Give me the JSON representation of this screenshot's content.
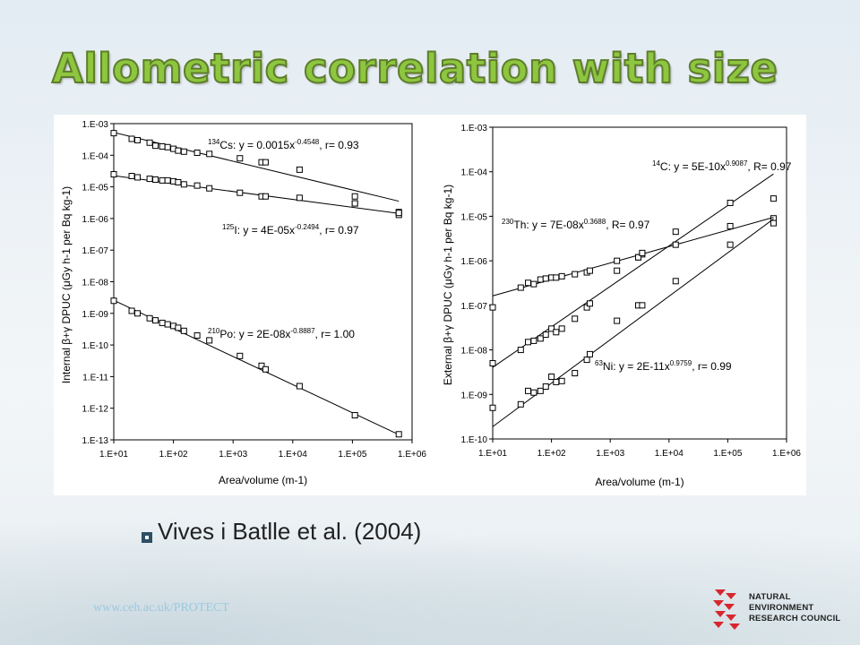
{
  "slide": {
    "title": "Allometric correlation with size",
    "citation": "Vives i Batlle et al. (2004)",
    "url": "www.ceh.ac.uk/PROTECT",
    "logo": [
      "NATURAL",
      "ENVIRONMENT",
      "RESEARCH COUNCIL"
    ],
    "colors": {
      "title": "#8dc63f",
      "title_outline": "#5f7d2b",
      "logo": "#d7262f",
      "url": "#9ac9df"
    }
  },
  "chart_data": [
    {
      "type": "scatter",
      "xscale": "log",
      "yscale": "log",
      "xlim": [
        10,
        1000000
      ],
      "ylim": [
        1e-13,
        0.001
      ],
      "xticks": [
        "1.E+01",
        "1.E+02",
        "1.E+03",
        "1.E+04",
        "1.E+05",
        "1.E+06"
      ],
      "yticks": [
        "1.E-13",
        "1.E-12",
        "1.E-11",
        "1.E-10",
        "1.E-09",
        "1.E-08",
        "1.E-07",
        "1.E-06",
        "1.E-05",
        "1.E-04",
        "1.E-03"
      ],
      "xlabel": "Area/volume (m-1)",
      "ylabel": "Internal β+γ DPUC (μGy h-1 per Bq kg-1)",
      "series": [
        {
          "name": "Cs-134",
          "label": {
            "iso": "134",
            "text": "Cs: y = 0.0015x",
            "exp": "-0.4548",
            "r": ", r",
            "r2": "= 0.93"
          },
          "fit": {
            "a": 0.0015,
            "b": -0.4548
          },
          "points": [
            [
              10,
              0.0005
            ],
            [
              20,
              0.00033
            ],
            [
              25,
              0.0003
            ],
            [
              40,
              0.00025
            ],
            [
              50,
              0.0002
            ],
            [
              65,
              0.00019
            ],
            [
              80,
              0.00018
            ],
            [
              100,
              0.00016
            ],
            [
              120,
              0.00014
            ],
            [
              150,
              0.00013
            ],
            [
              250,
              0.00012
            ],
            [
              400,
              0.00011
            ],
            [
              1300,
              8e-05
            ],
            [
              3000,
              6e-05
            ],
            [
              3500,
              6e-05
            ],
            [
              13000,
              3.5e-05
            ],
            [
              110000,
              5e-06
            ],
            [
              110000,
              3e-06
            ],
            [
              600000,
              1.6e-06
            ],
            [
              600000,
              1.3e-06
            ]
          ]
        },
        {
          "name": "I-125",
          "label": {
            "iso": "125",
            "text": "I: y = 4E-05x",
            "exp": "-0.2494",
            "r": ", r",
            "r2": "= 0.97"
          },
          "fit": {
            "a": 4e-05,
            "b": -0.2494
          },
          "points": [
            [
              10,
              2.5e-05
            ],
            [
              20,
              2.2e-05
            ],
            [
              25,
              2e-05
            ],
            [
              40,
              1.8e-05
            ],
            [
              50,
              1.7e-05
            ],
            [
              65,
              1.6e-05
            ],
            [
              80,
              1.6e-05
            ],
            [
              100,
              1.5e-05
            ],
            [
              120,
              1.4e-05
            ],
            [
              150,
              1.2e-05
            ],
            [
              250,
              1.1e-05
            ],
            [
              400,
              9e-06
            ],
            [
              1300,
              6.5e-06
            ],
            [
              3000,
              5e-06
            ],
            [
              3500,
              5e-06
            ],
            [
              13000,
              4.5e-06
            ],
            [
              110000,
              3e-06
            ],
            [
              600000,
              1.5e-06
            ]
          ]
        },
        {
          "name": "Po-210",
          "label": {
            "iso": "210",
            "text": "Po: y = 2E-08x",
            "exp": "-0.8887",
            "r": ", r",
            "r2": "= 1.00"
          },
          "fit": {
            "a": 2e-08,
            "b": -0.8887
          },
          "points": [
            [
              10,
              2.5e-09
            ],
            [
              20,
              1.2e-09
            ],
            [
              25,
              1e-09
            ],
            [
              40,
              7e-10
            ],
            [
              50,
              6e-10
            ],
            [
              65,
              5e-10
            ],
            [
              80,
              4.5e-10
            ],
            [
              100,
              4e-10
            ],
            [
              120,
              3.5e-10
            ],
            [
              150,
              2.8e-10
            ],
            [
              250,
              2e-10
            ],
            [
              400,
              1.4e-10
            ],
            [
              1300,
              4.5e-11
            ],
            [
              3000,
              2.2e-11
            ],
            [
              3500,
              1.7e-11
            ],
            [
              13000,
              5e-12
            ],
            [
              110000,
              6e-13
            ],
            [
              600000,
              1.5e-13
            ]
          ]
        }
      ]
    },
    {
      "type": "scatter",
      "xscale": "log",
      "yscale": "log",
      "xlim": [
        10,
        1000000
      ],
      "ylim": [
        1e-10,
        0.001
      ],
      "xticks": [
        "1.E+01",
        "1.E+02",
        "1.E+03",
        "1.E+04",
        "1.E+05",
        "1.E+06"
      ],
      "yticks": [
        "1.E-10",
        "1.E-09",
        "1.E-08",
        "1.E-07",
        "1.E-06",
        "1.E-05",
        "1.E-04",
        "1.E-03"
      ],
      "xlabel": "Area/volume (m-1)",
      "ylabel": "External β+γ DPUC (μGy h-1 per Bq kg-1)",
      "series": [
        {
          "name": "C-14",
          "label": {
            "iso": "14",
            "text": "C: y = 5E-10x",
            "exp": "0.9087",
            "r": ", R",
            "r2": "= 0.97"
          },
          "fit": {
            "a": 5e-10,
            "b": 0.9087
          },
          "points": [
            [
              10,
              5e-09
            ],
            [
              30,
              1e-08
            ],
            [
              40,
              1.5e-08
            ],
            [
              50,
              1.6e-08
            ],
            [
              65,
              1.8e-08
            ],
            [
              80,
              2.2e-08
            ],
            [
              100,
              3e-08
            ],
            [
              120,
              2.5e-08
            ],
            [
              150,
              3e-08
            ],
            [
              250,
              5e-08
            ],
            [
              400,
              9e-08
            ],
            [
              450,
              1.1e-07
            ],
            [
              1300,
              4.5e-08
            ],
            [
              3000,
              1e-07
            ],
            [
              3500,
              1e-07
            ],
            [
              13000,
              3.5e-07
            ],
            [
              110000,
              2.3e-06
            ],
            [
              600000,
              9e-06
            ]
          ]
        },
        {
          "name": "Th-230",
          "label": {
            "iso": "230",
            "text": "Th: y = 7E-08x",
            "exp": "0.3688",
            "r": ", R",
            "r2": "= 0.97"
          },
          "fit": {
            "a": 7e-08,
            "b": 0.3688
          },
          "points": [
            [
              10,
              9e-08
            ],
            [
              30,
              2.5e-07
            ],
            [
              40,
              3.2e-07
            ],
            [
              50,
              3e-07
            ],
            [
              65,
              3.8e-07
            ],
            [
              80,
              4e-07
            ],
            [
              100,
              4.2e-07
            ],
            [
              120,
              4.2e-07
            ],
            [
              150,
              4.5e-07
            ],
            [
              250,
              5e-07
            ],
            [
              400,
              5.5e-07
            ],
            [
              450,
              6e-07
            ],
            [
              1300,
              1e-06
            ],
            [
              3000,
              1.2e-06
            ],
            [
              3500,
              1.4e-06
            ],
            [
              13000,
              4.5e-06
            ],
            [
              110000,
              6e-06
            ],
            [
              600000,
              2.5e-05
            ]
          ]
        },
        {
          "name": "Ni-63",
          "label": {
            "iso": "63",
            "text": "Ni: y = 2E-11x",
            "exp": "0.9759",
            "r": ", r",
            "r2": "= 0.99"
          },
          "fit": {
            "a": 2e-11,
            "b": 0.9759
          },
          "points": [
            [
              10,
              5e-10
            ],
            [
              30,
              6e-10
            ],
            [
              40,
              1.2e-09
            ],
            [
              50,
              1.1e-09
            ],
            [
              65,
              1.2e-09
            ],
            [
              80,
              1.5e-09
            ],
            [
              100,
              2.5e-09
            ],
            [
              120,
              1.9e-09
            ],
            [
              150,
              2e-09
            ],
            [
              250,
              3e-09
            ],
            [
              400,
              6e-09
            ],
            [
              450,
              8e-09
            ],
            [
              1300,
              6e-07
            ],
            [
              3000,
              1.2e-06
            ],
            [
              3500,
              1.5e-06
            ],
            [
              13000,
              2.3e-06
            ],
            [
              110000,
              2e-05
            ],
            [
              600000,
              7e-06
            ]
          ]
        }
      ]
    }
  ]
}
